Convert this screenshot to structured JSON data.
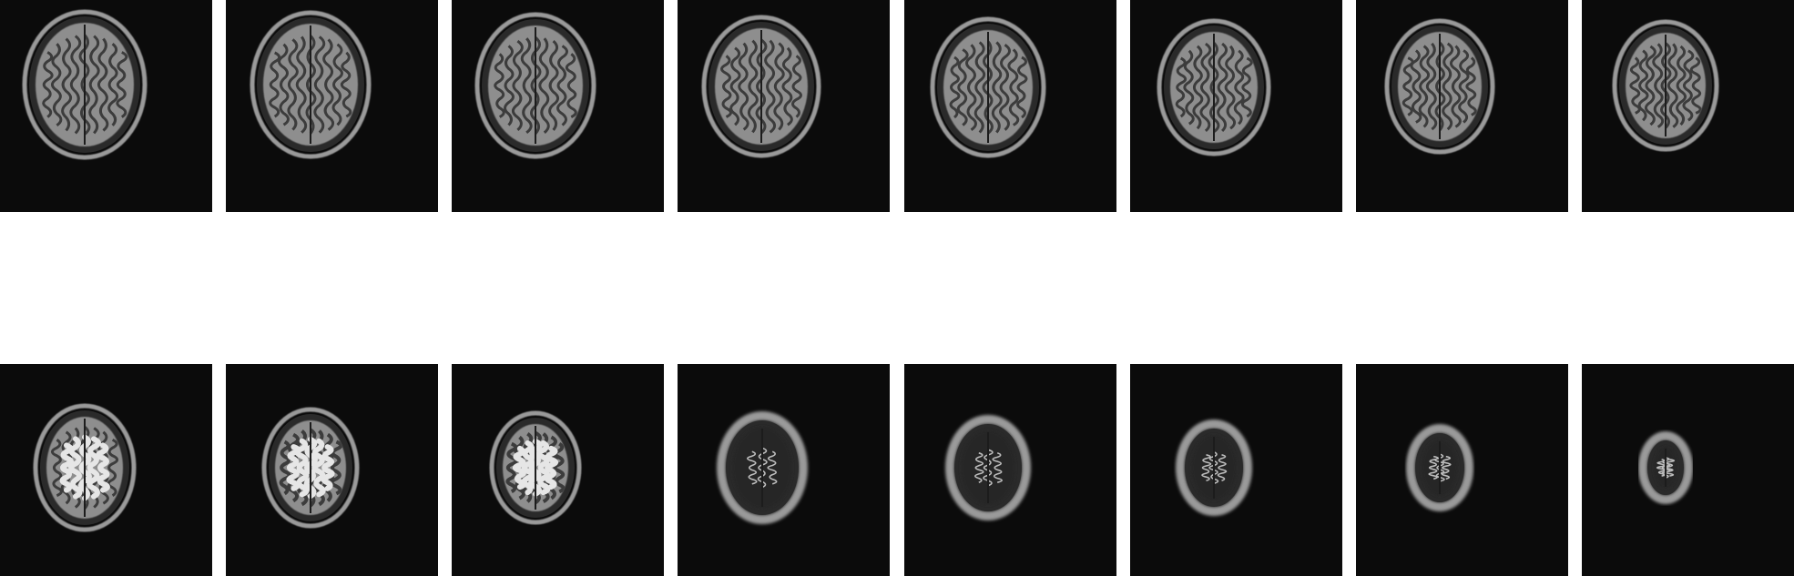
{
  "title": "",
  "colors": {
    "background": "#ffffff",
    "tile": "#0b0b0b",
    "scalp": "#9a9a9a",
    "skull": "#2a2a2a",
    "brain": "#8e8e8e",
    "sulci": "#3c3c3c",
    "hyperintense": "#e6e6e6"
  },
  "rows": [
    {
      "slices": [
        {
          "label": "",
          "kind": "brain"
        },
        {
          "label": "",
          "kind": "brain"
        },
        {
          "label": "",
          "kind": "brain"
        },
        {
          "label": "",
          "kind": "brain"
        },
        {
          "label": "",
          "kind": "brain"
        },
        {
          "label": "",
          "kind": "brain"
        },
        {
          "label": "",
          "kind": "brain"
        },
        {
          "label": "",
          "kind": "brain"
        }
      ]
    },
    {
      "slices": [
        {
          "label": "",
          "kind": "brain"
        },
        {
          "label": "",
          "kind": "brain-bright"
        },
        {
          "label": "",
          "kind": "brain-bright"
        },
        {
          "label": "",
          "kind": "vertex"
        },
        {
          "label": "",
          "kind": "vertex"
        },
        {
          "label": "",
          "kind": "vertex"
        },
        {
          "label": "",
          "kind": "vertex"
        },
        {
          "label": "",
          "kind": "vertex"
        }
      ]
    }
  ]
}
